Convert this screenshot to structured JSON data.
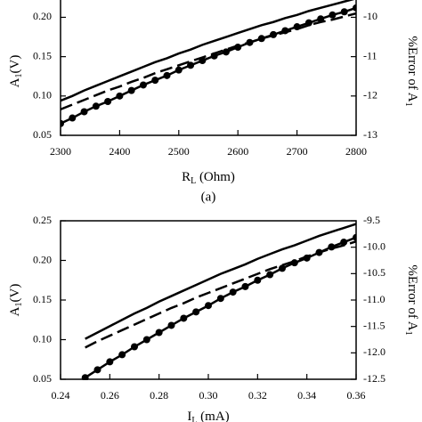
{
  "chart_data": [
    {
      "type": "line",
      "xlabel": [
        "R",
        "L",
        " (Ohm)"
      ],
      "ylabel": [
        "A",
        "1",
        "(V)"
      ],
      "y2label": [
        "%Error of A",
        "1"
      ],
      "panel_label": "(a)",
      "x": [
        2300,
        2320,
        2340,
        2360,
        2380,
        2400,
        2420,
        2440,
        2460,
        2480,
        2500,
        2520,
        2540,
        2560,
        2580,
        2600,
        2620,
        2640,
        2660,
        2680,
        2700,
        2720,
        2740,
        2760,
        2780,
        2800
      ],
      "series": [
        {
          "color": "#000000",
          "linestyle": "solid",
          "marker": false,
          "values": [
            0.094,
            0.1,
            0.107,
            0.113,
            0.119,
            0.125,
            0.131,
            0.137,
            0.143,
            0.148,
            0.154,
            0.159,
            0.165,
            0.17,
            0.175,
            0.18,
            0.185,
            0.19,
            0.194,
            0.199,
            0.203,
            0.208,
            0.212,
            0.216,
            0.22,
            0.224
          ]
        },
        {
          "color": "#000000",
          "linestyle": "dashed",
          "marker": false,
          "values": [
            0.083,
            0.089,
            0.095,
            0.101,
            0.107,
            0.112,
            0.118,
            0.123,
            0.129,
            0.134,
            0.139,
            0.144,
            0.149,
            0.154,
            0.159,
            0.164,
            0.168,
            0.173,
            0.177,
            0.181,
            0.185,
            0.19,
            0.194,
            0.197,
            0.201,
            0.205
          ]
        },
        {
          "color": "#000000",
          "linestyle": "solid",
          "marker": true,
          "values": [
            0.065,
            0.072,
            0.08,
            0.087,
            0.093,
            0.1,
            0.107,
            0.114,
            0.12,
            0.126,
            0.133,
            0.139,
            0.145,
            0.151,
            0.156,
            0.162,
            0.168,
            0.173,
            0.178,
            0.183,
            0.188,
            0.193,
            0.198,
            0.203,
            0.207,
            0.212
          ]
        }
      ],
      "xlim": [
        2300,
        2800
      ],
      "xticks": [
        2300,
        2400,
        2500,
        2600,
        2700,
        2800
      ],
      "ylim": [
        0.05,
        0.222
      ],
      "yticks": [
        0.05,
        {
          "value": 0.1,
          "label": "0.10"
        },
        0.15,
        {
          "value": 0.2,
          "label": "0.20"
        }
      ],
      "y2lim": [
        -13,
        -9.56
      ],
      "y2ticks": [
        -13,
        -12,
        -11,
        -10
      ]
    },
    {
      "type": "line",
      "xlabel": [
        "I",
        "L",
        " (mA)"
      ],
      "ylabel": [
        "A",
        "1",
        "(V)"
      ],
      "y2label": [
        "%Error of A",
        "1"
      ],
      "x": [
        0.25,
        0.255,
        0.26,
        0.265,
        0.27,
        0.275,
        0.28,
        0.285,
        0.29,
        0.295,
        0.3,
        0.305,
        0.31,
        0.315,
        0.32,
        0.325,
        0.33,
        0.335,
        0.34,
        0.345,
        0.35,
        0.355,
        0.36
      ],
      "series": [
        {
          "color": "#000000",
          "linestyle": "solid",
          "marker": false,
          "values": [
            0.101,
            0.109,
            0.117,
            0.125,
            0.133,
            0.14,
            0.148,
            0.155,
            0.162,
            0.169,
            0.176,
            0.183,
            0.189,
            0.195,
            0.202,
            0.208,
            0.214,
            0.219,
            0.225,
            0.231,
            0.236,
            0.241,
            0.246
          ]
        },
        {
          "color": "#000000",
          "linestyle": "dashed",
          "marker": false,
          "values": [
            0.09,
            0.098,
            0.105,
            0.112,
            0.119,
            0.126,
            0.133,
            0.14,
            0.146,
            0.153,
            0.159,
            0.165,
            0.171,
            0.177,
            0.183,
            0.189,
            0.194,
            0.199,
            0.205,
            0.21,
            0.215,
            0.219,
            0.224
          ]
        },
        {
          "color": "#000000",
          "linestyle": "solid",
          "marker": true,
          "values": [
            0.052,
            0.062,
            0.072,
            0.081,
            0.091,
            0.1,
            0.109,
            0.118,
            0.127,
            0.135,
            0.143,
            0.152,
            0.16,
            0.167,
            0.175,
            0.182,
            0.19,
            0.197,
            0.203,
            0.21,
            0.217,
            0.223,
            0.229
          ]
        }
      ],
      "xlim": [
        0.24,
        0.36
      ],
      "xticks": [
        0.24,
        0.26,
        0.28,
        {
          "value": 0.3,
          "label": "0.30"
        },
        0.32,
        0.34,
        0.36
      ],
      "ylim": [
        0.05,
        0.25
      ],
      "yticks": [
        0.05,
        {
          "value": 0.1,
          "label": "0.10"
        },
        0.15,
        {
          "value": 0.2,
          "label": "0.20"
        },
        0.25
      ],
      "y2lim": [
        -12.5,
        -9.5
      ],
      "y2ticks": [
        -12.5,
        {
          "value": -12,
          "label": "-12.0"
        },
        -11.5,
        {
          "value": -11,
          "label": "-11.0"
        },
        -10.5,
        {
          "value": -10,
          "label": "-10.0"
        },
        -9.5
      ]
    }
  ]
}
